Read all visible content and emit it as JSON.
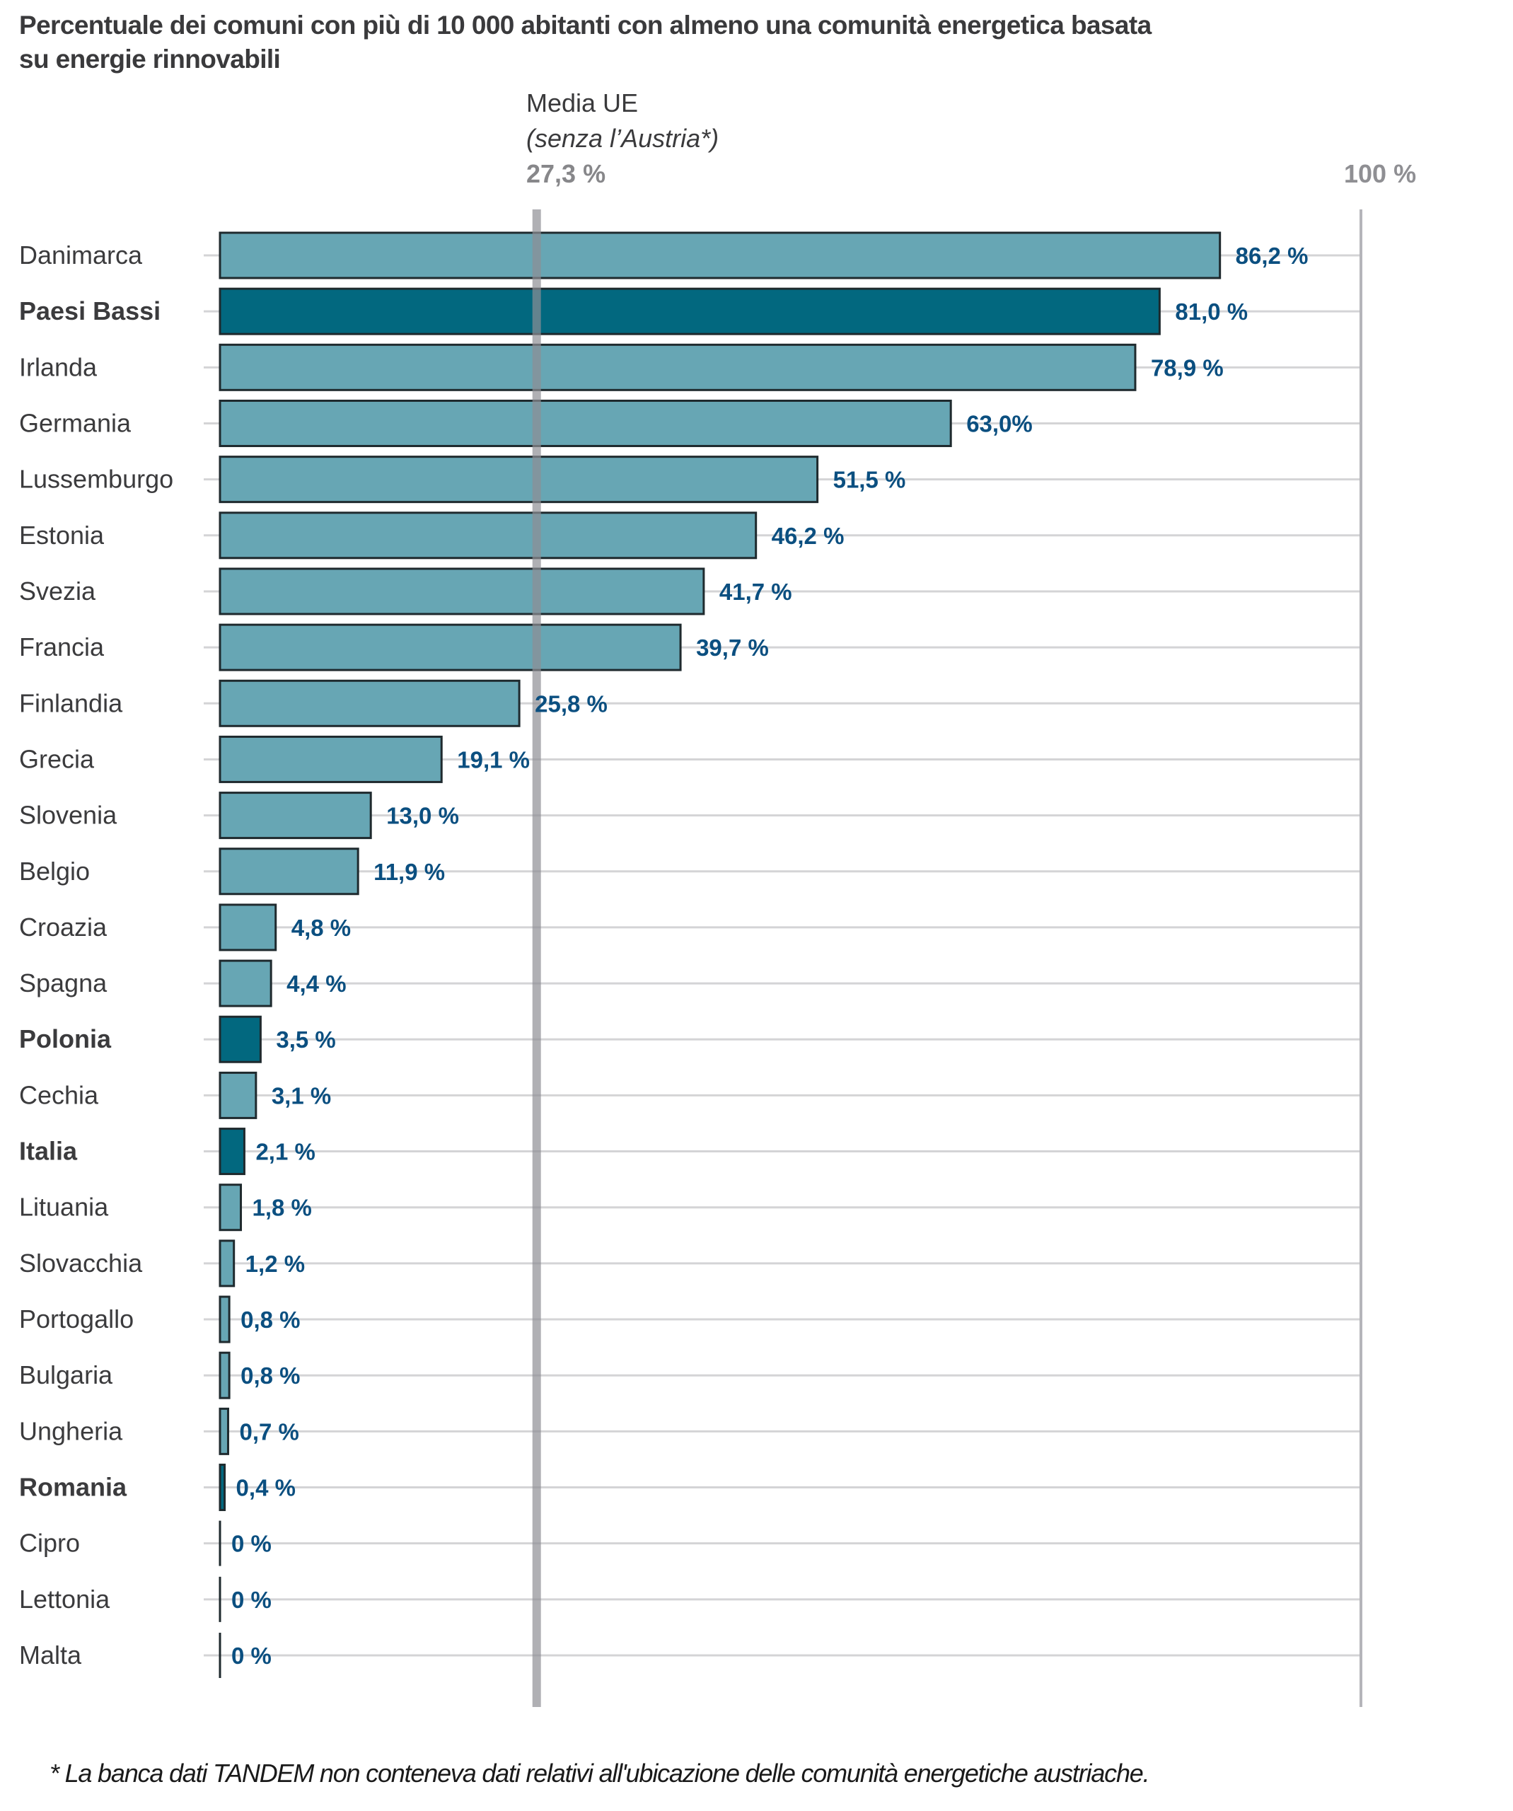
{
  "chart_data": {
    "type": "bar",
    "orientation": "horizontal",
    "title": "Percentuale dei comuni con più di 10 000 abitanti con almeno una comunità energetica basata su energie rinnovabili",
    "title_lines": [
      "Percentuale dei comuni con più di 10 000 abitanti con almeno una comunità energetica basata",
      "su energie rinnovabili"
    ],
    "xlabel": "",
    "ylabel": "",
    "xlim": [
      0,
      100
    ],
    "grid": "horizontal row guides",
    "categories": [
      "Danimarca",
      "Paesi Bassi",
      "Irlanda",
      "Germania",
      "Lussemburgo",
      "Estonia",
      "Svezia",
      "Francia",
      "Finlandia",
      "Grecia",
      "Slovenia",
      "Belgio",
      "Croazia",
      "Spagna",
      "Polonia",
      "Cechia",
      "Italia",
      "Lituania",
      "Slovacchia",
      "Portogallo",
      "Bulgaria",
      "Ungheria",
      "Romania",
      "Cipro",
      "Lettonia",
      "Malta"
    ],
    "values": [
      86.2,
      81.0,
      78.9,
      63.0,
      51.5,
      46.2,
      41.7,
      39.7,
      25.8,
      19.1,
      13.0,
      11.9,
      4.8,
      4.4,
      3.5,
      3.1,
      2.1,
      1.8,
      1.2,
      0.8,
      0.8,
      0.7,
      0.4,
      0,
      0,
      0
    ],
    "value_labels": [
      "86,2 %",
      "81,0 %",
      "78,9 %",
      "63,0%",
      "51,5 %",
      "46,2 %",
      "41,7 %",
      "39,7 %",
      "25,8 %",
      "19,1 %",
      "13,0 %",
      "11,9 %",
      "4,8 %",
      "4,4 %",
      "3,5 %",
      "3,1 %",
      "2,1 %",
      "1,8 %",
      "1,2 %",
      "0,8 %",
      "0,8 %",
      "0,7 %",
      "0,4 %",
      "0 %",
      "0 %",
      "0 %"
    ],
    "highlighted": [
      "Paesi Bassi",
      "Polonia",
      "Italia",
      "Romania"
    ],
    "reference_lines": [
      {
        "name": "eu-average",
        "value": 27.3,
        "label": "Media UE",
        "sublabel": "(senza l’Austria*)",
        "value_label": "27,3 %"
      },
      {
        "name": "hundred-percent",
        "value": 100,
        "value_label": "100 %"
      }
    ],
    "colors": {
      "bar": "#67a6b4",
      "bar_highlight": "#02687f",
      "bar_stroke": "#1f2a2e",
      "value_label": "#0b4f80",
      "mean_line": "#8e8e94",
      "reference_line": "#b5b5ba",
      "guide": "#d4d4d6"
    },
    "footnote": "* La banca dati TANDEM non conteneva dati relativi all'ubicazione delle comunità energetiche austriache."
  }
}
